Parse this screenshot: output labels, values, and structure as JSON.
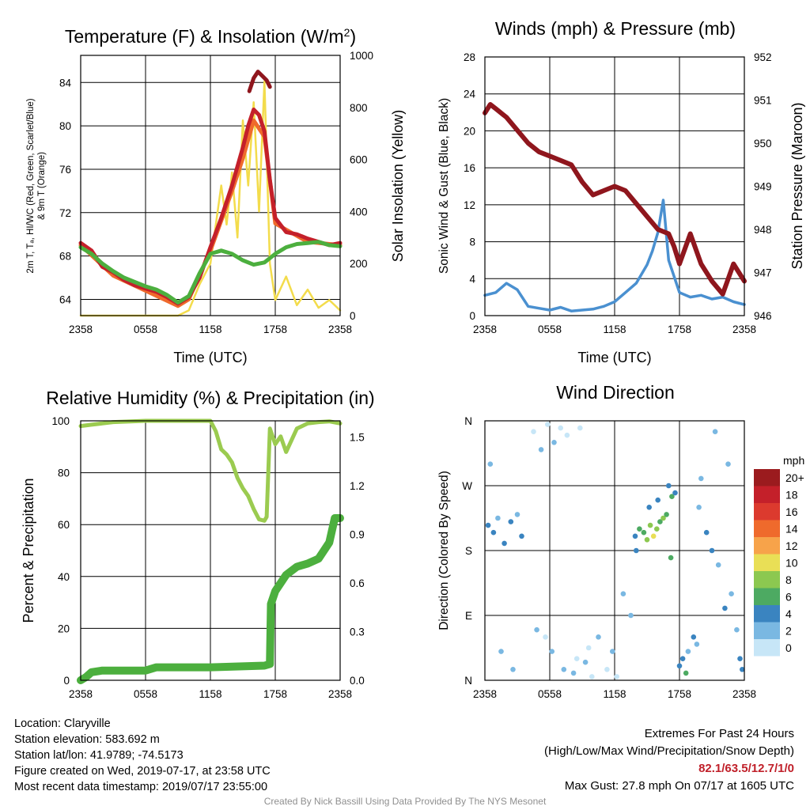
{
  "charts": {
    "temperature": {
      "title": "Temperature (F) & Insolation (W/m",
      "title_sup": "2",
      "title_end": ")",
      "ylabel_line1": "2m T, Tₐ, HI/WC (Red, Green, Scarlet/Blue)",
      "ylabel_line2": "& 9m T (Orange)",
      "y2label": "Solar Insolation (Yellow)",
      "xlabel": "Time (UTC)"
    },
    "winds": {
      "title": "Winds (mph) & Pressure (mb)",
      "ylabel": "Sonic Wind & Gust (Blue, Black)",
      "y2label": "Station Pressure (Maroon)",
      "xlabel": "Time (UTC)"
    },
    "humidity": {
      "title": "Relative Humidity (%) & Precipitation (in)",
      "ylabel": "Percent & Precipitation"
    },
    "direction": {
      "title": "Wind Direction",
      "ylabel": "Direction (Colored By Speed)",
      "legend_title": "mph",
      "legend_labels": [
        "20+",
        "18",
        "16",
        "14",
        "12",
        "10",
        "8",
        "6",
        "4",
        "2",
        "0"
      ],
      "legend_colors": [
        "#9b1b1e",
        "#c4202a",
        "#dc3a2e",
        "#ef6a2c",
        "#f7a34a",
        "#e9df56",
        "#8cc850",
        "#4daa62",
        "#3a84c0",
        "#7ab8e2",
        "#c7e6f7"
      ]
    }
  },
  "chart_data": [
    {
      "type": "line",
      "title": "Temperature (F) & Insolation (W/m2)",
      "xlabel": "Time (UTC)",
      "ylabel": "2m T, Td, HI/WC (Red, Green, Scarlet/Blue) & 9m T (Orange)",
      "y2label": "Solar Insolation (Yellow)",
      "x_ticks": [
        "2358",
        "0558",
        "1158",
        "1758",
        "2358"
      ],
      "x_hours": [
        0,
        6,
        12,
        18,
        24
      ],
      "ylim": [
        62.5,
        86.5
      ],
      "y_ticks": [
        64,
        68,
        72,
        76,
        80,
        84
      ],
      "y2lim": [
        0,
        1000
      ],
      "y2_ticks": [
        0,
        200,
        400,
        600,
        800,
        1000
      ],
      "series": [
        {
          "name": "2m T",
          "color": "#c4202a",
          "x": [
            0,
            1,
            2,
            3,
            4,
            5,
            6,
            7,
            8,
            9,
            10,
            11,
            12,
            13,
            14,
            15,
            15.5,
            16,
            16.5,
            17,
            17.5,
            18,
            19,
            20,
            21,
            22,
            23,
            24
          ],
          "values": [
            69.2,
            68.5,
            67.0,
            66.5,
            65.8,
            65.3,
            65.0,
            64.7,
            64.2,
            63.6,
            64.2,
            66.0,
            68.8,
            71.5,
            74.5,
            78.0,
            80.0,
            81.5,
            81.0,
            79.5,
            75.0,
            71.5,
            70.2,
            70.0,
            69.6,
            69.3,
            69.0,
            69.2
          ]
        },
        {
          "name": "9m T",
          "color": "#ef6a2c",
          "x": [
            0,
            3,
            6,
            9,
            10,
            12,
            14,
            15,
            16,
            17,
            18,
            21,
            24
          ],
          "values": [
            69.0,
            66.2,
            64.8,
            63.4,
            64.0,
            68.5,
            74.0,
            77.0,
            80.5,
            79.0,
            71.0,
            69.3,
            69.0
          ]
        },
        {
          "name": "Td",
          "color": "#4caf3e",
          "x": [
            0,
            1,
            2,
            3,
            4,
            5,
            6,
            7,
            8,
            9,
            10,
            11,
            12,
            13,
            14,
            15,
            16,
            17,
            18,
            19,
            20,
            21,
            22,
            23,
            24
          ],
          "values": [
            68.8,
            68.2,
            67.3,
            66.6,
            66.0,
            65.6,
            65.2,
            64.9,
            64.4,
            63.7,
            64.3,
            66.4,
            68.2,
            68.5,
            68.2,
            67.6,
            67.2,
            67.4,
            68.2,
            68.8,
            69.1,
            69.2,
            69.3,
            69.0,
            68.9
          ]
        },
        {
          "name": "HI",
          "color": "#8f161d",
          "x": [
            15.6,
            16.0,
            16.4,
            16.8,
            17.2,
            17.5
          ],
          "values": [
            83.2,
            84.4,
            85.0,
            84.6,
            84.2,
            83.6
          ]
        },
        {
          "name": "Solar Insolation",
          "axis": "y2",
          "color": "#f3dc4c",
          "x": [
            0,
            9,
            10,
            11,
            12,
            13,
            13.5,
            14,
            14.5,
            15,
            15.5,
            16,
            16.5,
            17,
            17.5,
            18,
            19,
            20,
            21,
            22,
            23,
            24
          ],
          "values": [
            0,
            0,
            20,
            120,
            200,
            500,
            350,
            550,
            300,
            750,
            500,
            820,
            400,
            900,
            200,
            60,
            150,
            40,
            100,
            30,
            60,
            20
          ]
        }
      ]
    },
    {
      "type": "line",
      "title": "Winds (mph) & Pressure (mb)",
      "xlabel": "Time (UTC)",
      "ylabel": "Sonic Wind & Gust (Blue, Black)",
      "y2label": "Station Pressure (Maroon)",
      "x_ticks": [
        "2358",
        "0558",
        "1158",
        "1758",
        "2358"
      ],
      "x_hours": [
        0,
        6,
        12,
        18,
        24
      ],
      "ylim": [
        0,
        28
      ],
      "y_ticks": [
        0,
        4,
        8,
        12,
        16,
        20,
        24,
        28
      ],
      "y2lim": [
        946,
        952
      ],
      "y2_ticks": [
        946,
        947,
        948,
        949,
        950,
        951,
        952
      ],
      "series": [
        {
          "name": "Station Pressure",
          "axis": "y2",
          "color": "#8f161d",
          "x": [
            0,
            0.5,
            1,
            2,
            3,
            4,
            5,
            6,
            7,
            8,
            9,
            10,
            11,
            12,
            13,
            14,
            15,
            16,
            17,
            17.5,
            18,
            19,
            20,
            21,
            22,
            23,
            24
          ],
          "values": [
            950.7,
            950.9,
            950.8,
            950.6,
            950.3,
            950.0,
            949.8,
            949.7,
            949.6,
            949.5,
            949.1,
            948.8,
            948.9,
            949.0,
            948.9,
            948.6,
            948.3,
            948.0,
            947.9,
            947.6,
            947.2,
            947.9,
            947.2,
            946.8,
            946.5,
            947.2,
            946.8
          ]
        },
        {
          "name": "Sonic Wind",
          "color": "#4a90d0",
          "x": [
            0,
            1,
            2,
            3,
            4,
            5,
            6,
            7,
            8,
            9,
            10,
            11,
            12,
            13,
            14,
            15,
            15.5,
            16,
            16.5,
            17,
            18,
            19,
            20,
            21,
            22,
            23,
            24
          ],
          "values": [
            2.2,
            2.5,
            3.5,
            2.8,
            1.0,
            0.8,
            0.6,
            0.9,
            0.5,
            0.6,
            0.7,
            1.0,
            1.5,
            2.5,
            3.5,
            5.5,
            7.0,
            9.0,
            12.5,
            6.0,
            2.5,
            2.0,
            2.2,
            1.8,
            2.0,
            1.5,
            1.2
          ]
        }
      ]
    },
    {
      "type": "line",
      "title": "Relative Humidity (%) & Precipitation (in)",
      "ylabel": "Percent & Precipitation",
      "x_ticks": [
        "2358",
        "0558",
        "1158",
        "1758",
        "2358"
      ],
      "x_hours": [
        0,
        6,
        12,
        18,
        24
      ],
      "ylim": [
        0,
        100
      ],
      "y_ticks": [
        0,
        20,
        40,
        60,
        80,
        100
      ],
      "y2lim": [
        0,
        1.6
      ],
      "y2_ticks": [
        "0.0",
        "0.3",
        "0.6",
        "0.9",
        "1.2",
        "1.5"
      ],
      "series": [
        {
          "name": "Relative Humidity",
          "color": "#9bcb50",
          "x": [
            0,
            1,
            2,
            3,
            6,
            9,
            12,
            12.5,
            13,
            13.5,
            14,
            14.5,
            15,
            15.5,
            16,
            16.5,
            17,
            17.2,
            17.5,
            18,
            18.5,
            19,
            20,
            21,
            22,
            23,
            24
          ],
          "values": [
            98.0,
            98.5,
            99.0,
            99.5,
            100,
            100,
            100,
            96.0,
            89.0,
            87.0,
            84.0,
            78.0,
            74.0,
            71.0,
            66.0,
            62.0,
            61.5,
            63.0,
            97.0,
            91.0,
            94.0,
            88.0,
            97.0,
            99.0,
            99.5,
            99.8,
            99.0
          ]
        },
        {
          "name": "Precipitation",
          "axis": "y2",
          "color": "#4caf3e",
          "x": [
            0,
            0.5,
            1,
            2,
            4,
            6,
            7,
            12,
            17,
            17.5,
            17.6,
            18,
            19,
            20,
            21,
            22,
            23,
            23.5,
            24
          ],
          "values": [
            0.0,
            0.02,
            0.05,
            0.06,
            0.06,
            0.06,
            0.08,
            0.08,
            0.09,
            0.1,
            0.47,
            0.55,
            0.65,
            0.7,
            0.72,
            0.75,
            0.85,
            1.0,
            1.0
          ]
        }
      ]
    },
    {
      "type": "scatter",
      "title": "Wind Direction",
      "ylabel": "Direction (Colored By Speed)",
      "x_ticks": [
        "2358",
        "0558",
        "1158",
        "1758",
        "2358"
      ],
      "x_hours": [
        0,
        6,
        12,
        18,
        24
      ],
      "y_ticks": [
        "N",
        "E",
        "S",
        "W",
        "N"
      ],
      "ylim": [
        0,
        360
      ],
      "series": [
        {
          "name": "Wind Direction",
          "x": [
            0.3,
            0.8,
            1.2,
            1.8,
            2.4,
            3.0,
            3.4,
            0.5,
            1.5,
            2.6,
            4.5,
            5.2,
            5.8,
            6.4,
            7.0,
            7.6,
            8.2,
            8.8,
            9.3,
            9.9,
            4.8,
            5.6,
            6.2,
            7.3,
            8.5,
            9.6,
            10.5,
            11.3,
            11.8,
            12.2,
            12.8,
            13.5,
            13.9,
            14.3,
            14.7,
            15.0,
            15.3,
            15.6,
            15.9,
            16.2,
            16.5,
            16.8,
            14.0,
            15.2,
            16.0,
            17.0,
            17.3,
            17.6,
            18.0,
            18.3,
            18.8,
            19.3,
            19.8,
            20.5,
            21.0,
            21.6,
            22.2,
            22.8,
            23.3,
            23.8,
            20.0,
            21.3,
            22.5,
            23.6,
            17.2,
            18.6,
            19.6
          ],
          "values": [
            215,
            205,
            225,
            190,
            220,
            230,
            200,
            300,
            40,
            15,
            345,
            320,
            355,
            330,
            350,
            340,
            10,
            350,
            25,
            5,
            70,
            60,
            40,
            15,
            30,
            45,
            60,
            15,
            40,
            5,
            120,
            90,
            200,
            210,
            205,
            195,
            215,
            200,
            210,
            220,
            225,
            230,
            180,
            240,
            250,
            270,
            255,
            260,
            20,
            30,
            40,
            60,
            240,
            205,
            180,
            160,
            100,
            120,
            70,
            15,
            280,
            345,
            300,
            30,
            170,
            10,
            50
          ],
          "speeds": [
            3,
            4,
            2,
            4,
            3,
            2,
            4,
            1,
            2,
            1,
            0,
            1,
            0,
            1,
            0,
            0,
            1,
            0,
            1,
            0,
            1,
            0,
            1,
            1,
            0,
            0,
            1,
            0,
            1,
            0,
            1,
            1,
            4,
            5,
            6,
            7,
            8,
            10,
            8,
            6,
            7,
            5,
            3,
            4,
            4,
            4,
            5,
            3,
            4,
            3,
            2,
            3,
            2,
            3,
            4,
            2,
            3,
            1,
            2,
            3,
            2,
            1,
            2,
            3,
            6,
            5,
            2
          ]
        }
      ]
    }
  ],
  "footer": {
    "location": "Location: Claryville",
    "elevation": "Station elevation: 583.692 m",
    "latlon": "Station lat/lon: 41.9789; -74.5173",
    "created": "Figure created on Wed, 2019-07-17, at 23:58 UTC",
    "recent": "Most recent data timestamp: 2019/07/17 23:55:00",
    "extremes_title": "Extremes For Past 24 Hours",
    "extremes_sub": "(High/Low/Max Wind/Precipitation/Snow Depth)",
    "extremes_values": "82.1/63.5/12.7/1/0",
    "max_gust": "Max Gust: 27.8 mph On 07/17 at 1605 UTC",
    "credit": "Created By Nick Bassill Using Data Provided By The NYS Mesonet"
  }
}
